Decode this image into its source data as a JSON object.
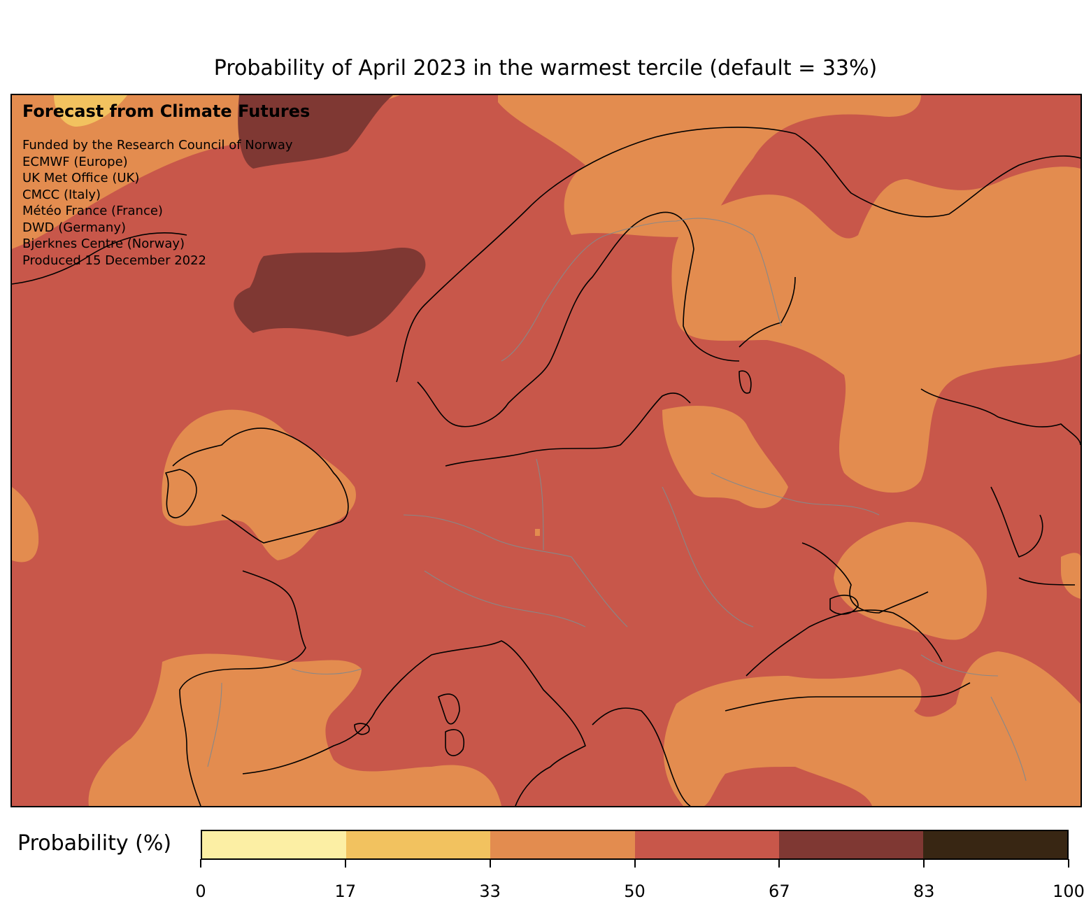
{
  "title": "Probability of April 2023 in the warmest tercile (default = 33%)",
  "map": {
    "heading": "Forecast from Climate Futures",
    "credits": [
      "Funded by the Research Council of Norway",
      "ECMWF (Europe)",
      "UK Met Office (UK)",
      "CMCC (Italy)",
      "Météo France (France)",
      "DWD (Germany)",
      "Bjerknes Centre (Norway)",
      "Produced 15 December 2022"
    ],
    "field_colors": {
      "0-17": "#fcefa4",
      "17-33": "#f2c25f",
      "33-50": "#e38c4f",
      "50-67": "#c8574a",
      "67-83": "#7f3833",
      "83-100": "#382613"
    }
  },
  "colorbar": {
    "label": "Probability (%)",
    "ticks": [
      "0",
      "17",
      "33",
      "50",
      "67",
      "83",
      "100"
    ],
    "colors": [
      "#fcefa4",
      "#f2c25f",
      "#e38c4f",
      "#c8574a",
      "#7f3833",
      "#382613"
    ]
  }
}
